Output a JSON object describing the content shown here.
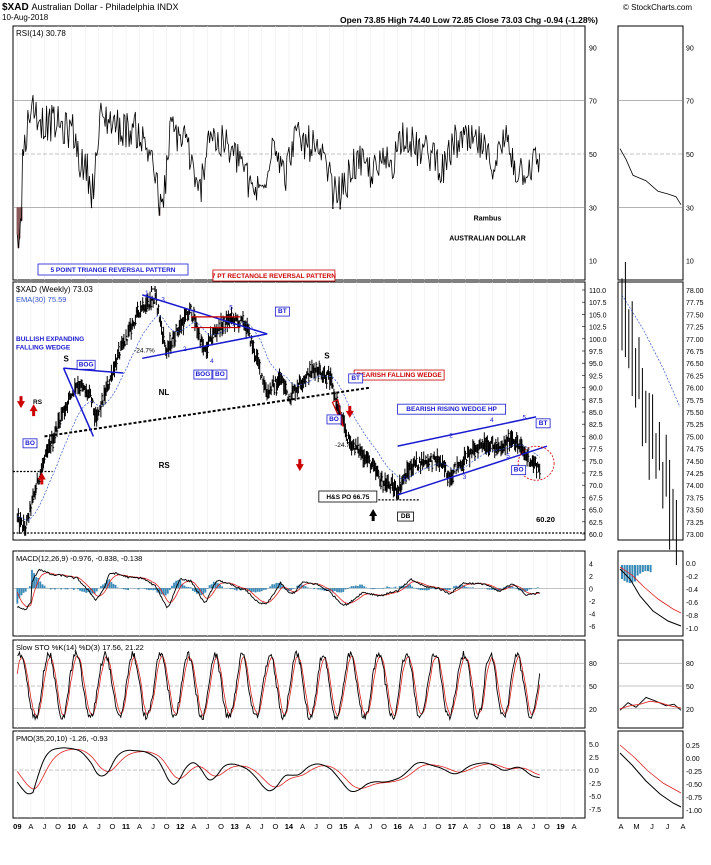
{
  "header": {
    "symbol": "$XAD",
    "name": "Australian Dollar - Philadelphia INDX",
    "credit": "© StockCharts.com",
    "date": "10-Aug-2018",
    "ohlc": "Open 73.85   High 74.40   Low 72.85   Close 73.03   Chg -0.94 (-1.28%)"
  },
  "panels": {
    "rsi": {
      "label": "RSI(14) 30.78",
      "ticks": [
        "90",
        "70",
        "50",
        "30",
        "10"
      ],
      "right_ticks": [
        "90",
        "70",
        "50",
        "30",
        "10"
      ]
    },
    "price": {
      "label": "$XAD (Weekly) 73.03",
      "ema_label": "EMA(30) 75.59",
      "ticks": [
        "110.0",
        "107.5",
        "105.0",
        "102.5",
        "100.0",
        "97.5",
        "95.0",
        "92.5",
        "90.0",
        "87.5",
        "85.0",
        "82.5",
        "80.0",
        "77.5",
        "75.0",
        "72.5",
        "70.0",
        "67.5",
        "65.0",
        "62.5",
        "60.0"
      ],
      "right_ticks": [
        "78.00",
        "77.75",
        "77.50",
        "77.25",
        "77.00",
        "76.75",
        "76.50",
        "76.25",
        "76.00",
        "75.75",
        "75.50",
        "75.25",
        "75.00",
        "74.75",
        "74.50",
        "74.25",
        "74.00",
        "73.75",
        "73.50",
        "73.25",
        "73.00"
      ]
    },
    "macd": {
      "label": "MACD(12,26,9) -0.976, -0.838, -0.138",
      "ticks": [
        "4",
        "2",
        "0",
        "-2",
        "-4",
        "-6"
      ],
      "right_ticks": [
        "0.0",
        "-0.2",
        "-0.4",
        "-0.6",
        "-0.8",
        "-1.0"
      ]
    },
    "sto": {
      "label": "Slow STO %K(14) %D(3) 17.56, 21.22",
      "ticks": [
        "80",
        "50",
        "20"
      ],
      "right_ticks": [
        "80",
        "50",
        "20"
      ]
    },
    "pmo": {
      "label": "PMO(35,20,10) -1.26, -0.93",
      "ticks": [
        "5.0",
        "2.5",
        "0.0",
        "-2.5",
        "-5.0",
        "-7.5"
      ],
      "right_ticks": [
        "0.25",
        "0.00",
        "-0.25",
        "-0.50",
        "-0.75",
        "-1.00"
      ]
    }
  },
  "annotations": {
    "rambus": "Rambus",
    "aud": "AUSTRALIAN DOLLAR",
    "five_point": "5 POINT TRIANGE REVERSAL PATTERN",
    "seven_pt": "7 PT RECTANGLE REVERSAL PATTERN",
    "bullish": "BULLISH EXPANDING\nFALLING WEDGE",
    "bearish_falling": "BEARISH FALLING WEDGE",
    "bearish_rising": "BEARISH RISING WEDGE HP",
    "hs_po": "H&S PO 66.75",
    "nl": "NL",
    "rs": "RS",
    "h": "H",
    "s": "S",
    "pct1": "-24.7%",
    "pct2": "-24.7%",
    "bog": "BOG",
    "bo": "BO",
    "bt": "BT",
    "db": "DB",
    "value_6020": "60.20",
    "n1": "1",
    "n2": "2",
    "n3": "3",
    "n4": "4",
    "n5": "5"
  },
  "xaxis": {
    "labels": [
      "09",
      "A",
      "J",
      "O",
      "10",
      "A",
      "J",
      "O",
      "11",
      "A",
      "J",
      "O",
      "12",
      "A",
      "J",
      "O",
      "13",
      "A",
      "J",
      "O",
      "14",
      "A",
      "J",
      "O",
      "15",
      "A",
      "J",
      "O",
      "16",
      "A",
      "J",
      "O",
      "17",
      "A",
      "J",
      "O",
      "18",
      "A",
      "J",
      "O",
      "19",
      "A"
    ],
    "right_labels": [
      "A",
      "M",
      "J",
      "J",
      "A"
    ]
  },
  "chart_data": {
    "type": "line",
    "x_range": [
      "2009-01",
      "2019-04"
    ],
    "series": [
      {
        "name": "$XAD (Weekly)",
        "x": [
          "2009-01",
          "2009-06",
          "2010-01",
          "2010-06",
          "2011-01",
          "2011-05",
          "2011-10",
          "2012-03",
          "2012-08",
          "2013-01",
          "2013-05",
          "2013-09",
          "2014-01",
          "2014-06",
          "2014-10",
          "2015-03",
          "2015-08",
          "2016-01",
          "2016-06",
          "2017-01",
          "2017-06",
          "2018-01",
          "2018-05",
          "2018-08"
        ],
        "values": [
          64,
          77,
          89,
          86,
          100,
          109,
          97,
          104,
          103,
          104,
          96,
          90,
          88,
          94,
          86,
          77,
          70,
          69,
          76,
          75,
          78,
          80,
          76,
          73
        ]
      }
    ],
    "ylim": [
      60,
      110
    ],
    "levels": {
      "hs_price_objective": 66.75,
      "low": 60.2
    }
  }
}
